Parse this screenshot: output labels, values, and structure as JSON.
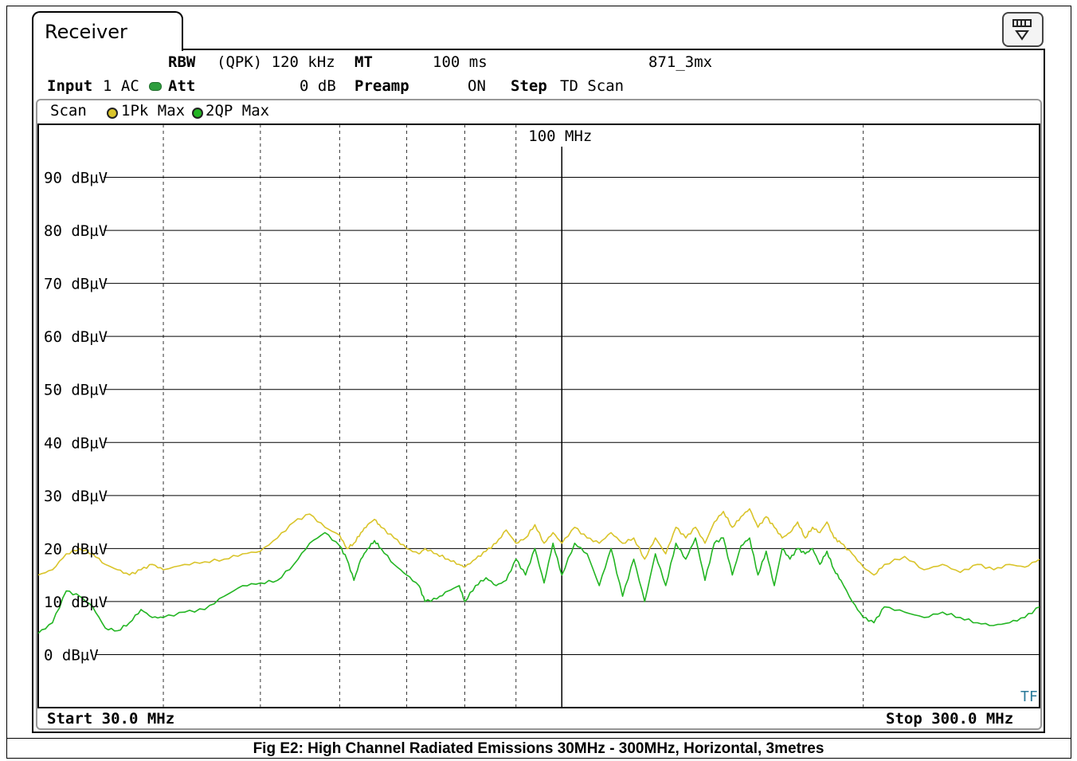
{
  "window": {
    "title": "Receiver",
    "menu_icon": "display-menu-icon"
  },
  "header": {
    "rbw_label": "RBW",
    "rbw_value": "(QPK) 120 kHz",
    "mt_label": "MT",
    "mt_value": "100 ms",
    "file_name": "871_3mx",
    "input_label": "Input",
    "input_value": "1 AC",
    "att_label": "Att",
    "att_value": "0 dB",
    "preamp_label": "Preamp",
    "preamp_value": "ON",
    "step_label": "Step",
    "step_value": "TD Scan"
  },
  "trace_legend": {
    "scan_label": "Scan",
    "trace1": "1Pk Max",
    "trace2": "2QP Max",
    "trace1_color": "#d9c42a",
    "trace2_color": "#23b523"
  },
  "footer": {
    "start_label": "Start 30.0 MHz",
    "stop_label": "Stop 300.0 MHz",
    "tf_label": "TF"
  },
  "caption": "Fig E2: High Channel Radiated Emissions 30MHz - 300MHz, Horizontal, 3metres",
  "chart_data": {
    "type": "line",
    "x_scale": "log",
    "xlim": [
      30,
      300
    ],
    "ylim": [
      -10,
      100
    ],
    "ylabel_unit": "dBµV",
    "y_ticks": [
      90,
      80,
      70,
      60,
      50,
      40,
      30,
      20,
      10,
      0
    ],
    "y_tick_labels": [
      "90 dBµV",
      "80 dBµV",
      "70 dBµV",
      "60 dBµV",
      "50 dBµV",
      "40 dBµV",
      "30 dBµV",
      "20 dBµV",
      "10 dBµV",
      "0 dBµV"
    ],
    "x_grid_mhz": [
      40,
      50,
      60,
      70,
      80,
      90,
      100,
      200
    ],
    "marker": {
      "x": 100,
      "label": "100 MHz"
    },
    "grid": true,
    "series": [
      {
        "name": "1Pk Max",
        "color": "#d9c42a",
        "x": [
          30,
          31,
          32,
          33,
          34,
          35,
          36,
          37,
          38,
          39,
          40,
          42,
          44,
          46,
          48,
          50,
          52,
          54,
          56,
          58,
          60,
          61,
          62,
          63,
          64,
          65,
          66,
          68,
          70,
          72,
          73,
          75,
          77,
          79,
          80,
          82,
          84,
          86,
          88,
          90,
          92,
          94,
          96,
          98,
          100,
          103,
          106,
          109,
          112,
          115,
          118,
          121,
          124,
          127,
          130,
          133,
          136,
          139,
          142,
          145,
          148,
          151,
          154,
          157,
          160,
          163,
          166,
          169,
          172,
          175,
          178,
          181,
          184,
          187,
          190,
          195,
          200,
          205,
          210,
          220,
          230,
          240,
          250,
          260,
          270,
          280,
          290,
          300
        ],
        "y": [
          15,
          16,
          19,
          20,
          19,
          17,
          16,
          15,
          16,
          17,
          16,
          17,
          17.5,
          18,
          19,
          19.5,
          22,
          25,
          26.5,
          24,
          22.5,
          20,
          21,
          23,
          24.5,
          25.5,
          24,
          22,
          20,
          19,
          20,
          19,
          18,
          17,
          16.5,
          18,
          19.5,
          21,
          23.5,
          21,
          22,
          24.5,
          21,
          23,
          21,
          24,
          22,
          21,
          23,
          21,
          22,
          18,
          22,
          19,
          24,
          22,
          24,
          21,
          25,
          27,
          24,
          26,
          27.5,
          24,
          26,
          24,
          22,
          23,
          25,
          22,
          24,
          23,
          25,
          22,
          21,
          19,
          16.5,
          15,
          17,
          18.5,
          16,
          17,
          15.5,
          17,
          16,
          17,
          16.5,
          18
        ]
      },
      {
        "name": "2QP Max",
        "color": "#23b523",
        "x": [
          30,
          31,
          32,
          33,
          34,
          35,
          36,
          37,
          38,
          39,
          40,
          42,
          44,
          46,
          48,
          50,
          52,
          54,
          56,
          58,
          60,
          61,
          62,
          63,
          64,
          65,
          66,
          68,
          70,
          72,
          73,
          75,
          77,
          79,
          80,
          82,
          84,
          86,
          88,
          90,
          92,
          94,
          96,
          98,
          100,
          103,
          106,
          109,
          112,
          115,
          118,
          121,
          124,
          127,
          130,
          133,
          136,
          139,
          142,
          145,
          148,
          151,
          154,
          157,
          160,
          163,
          166,
          169,
          172,
          175,
          178,
          181,
          184,
          187,
          190,
          195,
          200,
          205,
          210,
          220,
          230,
          240,
          250,
          260,
          270,
          280,
          290,
          300
        ],
        "y": [
          4,
          6,
          12,
          11,
          9,
          5,
          4.5,
          6,
          8.5,
          7,
          7,
          8,
          8.5,
          11,
          13,
          13.5,
          14,
          17,
          21,
          23,
          20.5,
          18,
          14,
          18,
          20,
          21.5,
          20,
          17,
          15,
          13,
          10,
          10.5,
          12,
          13,
          10,
          13,
          14.5,
          13,
          14,
          18,
          15,
          20,
          13.5,
          21,
          15,
          21,
          19,
          13,
          20,
          11,
          18,
          10,
          19,
          13,
          21,
          18,
          22,
          14,
          21,
          22,
          15,
          20.5,
          22,
          15,
          19.5,
          13,
          20,
          18,
          20,
          19,
          20,
          17,
          19.5,
          16,
          14,
          10,
          7,
          6,
          9,
          8,
          7,
          8,
          7,
          6,
          5.5,
          6,
          7,
          9
        ]
      }
    ]
  }
}
